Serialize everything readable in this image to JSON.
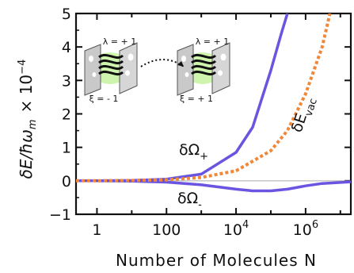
{
  "chart_data": {
    "type": "line",
    "title": "",
    "xlabel": "Number of Molecules  N",
    "ylabel": "δE/ħω",
    "ylabel_sub": "m",
    "ylabel_scale": "× 10",
    "ylabel_scale_exp": "−4",
    "x_scale": "log",
    "xlim": [
      0.25,
      20000000
    ],
    "ylim": [
      -1,
      5
    ],
    "x_ticks": [
      {
        "value": 1,
        "base": "1",
        "exp": ""
      },
      {
        "value": 100,
        "base": "100",
        "exp": ""
      },
      {
        "value": 10000,
        "base": "10",
        "exp": "4"
      },
      {
        "value": 1000000,
        "base": "10",
        "exp": "6"
      }
    ],
    "y_ticks": [
      {
        "value": -1,
        "label": "−1"
      },
      {
        "value": 0,
        "label": "0"
      },
      {
        "value": 1,
        "label": "1"
      },
      {
        "value": 2,
        "label": "2"
      },
      {
        "value": 3,
        "label": "3"
      },
      {
        "value": 4,
        "label": "4"
      },
      {
        "value": 5,
        "label": "5"
      }
    ],
    "series": [
      {
        "name": "δΩ+",
        "label_base": "δΩ",
        "label_sub": "+",
        "color": "#6a55e0",
        "style": "solid",
        "x": [
          0.25,
          1,
          10,
          100,
          1000,
          10000,
          30000,
          100000,
          200000,
          300000
        ],
        "y": [
          0,
          0,
          0.01,
          0.05,
          0.2,
          0.85,
          1.6,
          3.3,
          4.4,
          5.0
        ]
      },
      {
        "name": "δΩ−",
        "label_base": "δΩ",
        "label_sub": "-",
        "color": "#6a55e0",
        "style": "solid",
        "x": [
          0.25,
          1,
          10,
          100,
          1000,
          10000,
          30000,
          100000,
          300000,
          1000000,
          3000000,
          20000000
        ],
        "y": [
          0,
          0,
          -0.01,
          -0.04,
          -0.12,
          -0.25,
          -0.3,
          -0.3,
          -0.25,
          -0.15,
          -0.08,
          -0.03
        ]
      },
      {
        "name": "δEvac",
        "label_base": "δE",
        "label_sub": "vac",
        "color": "#f0883a",
        "style": "dotted",
        "x": [
          0.25,
          1,
          10,
          100,
          1000,
          10000,
          100000,
          300000,
          1000000,
          3000000,
          5000000
        ],
        "y": [
          0,
          0,
          0.01,
          0.03,
          0.1,
          0.3,
          0.9,
          1.5,
          2.6,
          4.0,
          5.0
        ]
      }
    ],
    "zero_line": true,
    "grid": false,
    "inset": {
      "left_panel": {
        "lambda": "λ = + 1",
        "xi": "ξ = - 1"
      },
      "right_panel": {
        "lambda": "λ = + 1",
        "xi": "ξ = + 1"
      }
    }
  }
}
